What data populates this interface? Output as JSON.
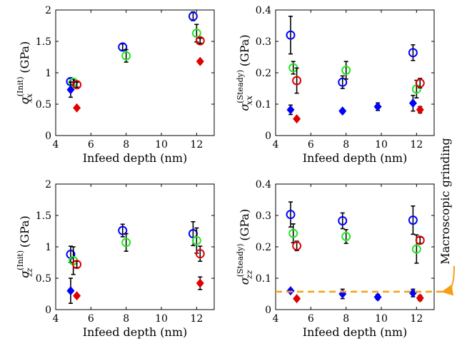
{
  "colors": {
    "blue": "#0000ff",
    "green": "#22e622",
    "red": "#e00000",
    "orange": "#f5a014",
    "errorbar": "#000000"
  },
  "annotation": {
    "text": "Macroscopic grinding",
    "reference_value": 0.057,
    "panel": 3
  },
  "chart_data": [
    {
      "type": "scatter",
      "xlabel": "Infeed depth (nm)",
      "ylabel_main": "σ",
      "ylabel_sub": "xx",
      "ylabel_sup": "(Init)",
      "ylabel_unit": " (GPa)",
      "xlim": [
        4,
        13
      ],
      "ylim": [
        0,
        2
      ],
      "xticks": [
        4,
        6,
        8,
        10,
        12
      ],
      "yticks": [
        0,
        0.5,
        1,
        1.5,
        2
      ],
      "ytick_labels": [
        "0",
        "0.5",
        "1",
        "1.5",
        "2"
      ],
      "series": [
        {
          "color": "blue",
          "marker": "circle",
          "points": [
            {
              "x": 4.85,
              "y": 0.86,
              "err": 0.05
            },
            {
              "x": 7.8,
              "y": 1.41,
              "err": 0.05
            },
            {
              "x": 11.8,
              "y": 1.9,
              "err": 0.07
            }
          ]
        },
        {
          "color": "green",
          "marker": "circle",
          "points": [
            {
              "x": 5.0,
              "y": 0.85,
              "err": 0.05
            },
            {
              "x": 8.0,
              "y": 1.27,
              "err": 0.1
            },
            {
              "x": 12.0,
              "y": 1.63,
              "err": 0.14
            }
          ]
        },
        {
          "color": "red",
          "marker": "circle",
          "points": [
            {
              "x": 5.2,
              "y": 0.81,
              "err": 0.04
            },
            {
              "x": 12.2,
              "y": 1.51,
              "err": 0.04
            }
          ]
        },
        {
          "color": "blue",
          "marker": "diamond",
          "points": [
            {
              "x": 4.85,
              "y": 0.73,
              "err": 0.12
            }
          ]
        },
        {
          "color": "red",
          "marker": "diamond",
          "points": [
            {
              "x": 5.2,
              "y": 0.44,
              "err": 0.02
            },
            {
              "x": 12.2,
              "y": 1.18,
              "err": 0.03
            }
          ]
        }
      ]
    },
    {
      "type": "scatter",
      "xlabel": "Infeed depth (nm)",
      "ylabel_main": "σ",
      "ylabel_sub": "xx",
      "ylabel_sup": "(Steady)",
      "ylabel_unit": " (GPa)",
      "xlim": [
        4,
        13
      ],
      "ylim": [
        0,
        0.4
      ],
      "xticks": [
        4,
        6,
        8,
        10,
        12
      ],
      "yticks": [
        0,
        0.1,
        0.2,
        0.3,
        0.4
      ],
      "ytick_labels": [
        "0",
        "0.1",
        "0.2",
        "0.3",
        "0.4"
      ],
      "series": [
        {
          "color": "blue",
          "marker": "circle",
          "points": [
            {
              "x": 4.85,
              "y": 0.32,
              "err": 0.06
            },
            {
              "x": 7.8,
              "y": 0.17,
              "err": 0.02
            },
            {
              "x": 11.8,
              "y": 0.264,
              "err": 0.025
            }
          ]
        },
        {
          "color": "green",
          "marker": "circle",
          "points": [
            {
              "x": 5.0,
              "y": 0.216,
              "err": 0.02
            },
            {
              "x": 8.0,
              "y": 0.208,
              "err": 0.028
            },
            {
              "x": 12.0,
              "y": 0.148,
              "err": 0.028
            }
          ]
        },
        {
          "color": "red",
          "marker": "circle",
          "points": [
            {
              "x": 5.2,
              "y": 0.175,
              "err": 0.04
            },
            {
              "x": 12.2,
              "y": 0.167,
              "err": 0.015
            }
          ]
        },
        {
          "color": "blue",
          "marker": "diamond",
          "points": [
            {
              "x": 4.85,
              "y": 0.082,
              "err": 0.015
            },
            {
              "x": 7.8,
              "y": 0.078,
              "err": 0.006
            },
            {
              "x": 9.8,
              "y": 0.092,
              "err": 0.012
            },
            {
              "x": 11.8,
              "y": 0.103,
              "err": 0.025
            }
          ]
        },
        {
          "color": "red",
          "marker": "diamond",
          "points": [
            {
              "x": 5.2,
              "y": 0.053,
              "err": 0.005
            },
            {
              "x": 12.2,
              "y": 0.082,
              "err": 0.01
            }
          ]
        }
      ]
    },
    {
      "type": "scatter",
      "xlabel": "Infeed depth (nm)",
      "ylabel_main": "σ",
      "ylabel_sub": "zz",
      "ylabel_sup": "(Init)",
      "ylabel_unit": " (GPa)",
      "xlim": [
        4,
        13
      ],
      "ylim": [
        0,
        2
      ],
      "xticks": [
        4,
        6,
        8,
        10,
        12
      ],
      "yticks": [
        0,
        0.5,
        1,
        1.5,
        2
      ],
      "ytick_labels": [
        "0",
        "0.5",
        "1",
        "1.5",
        "2"
      ],
      "series": [
        {
          "color": "blue",
          "marker": "circle",
          "points": [
            {
              "x": 4.85,
              "y": 0.88,
              "err": 0.13
            },
            {
              "x": 7.8,
              "y": 1.26,
              "err": 0.1
            },
            {
              "x": 11.8,
              "y": 1.21,
              "err": 0.19
            }
          ]
        },
        {
          "color": "green",
          "marker": "circle",
          "points": [
            {
              "x": 5.0,
              "y": 0.78,
              "err": 0.22
            },
            {
              "x": 8.0,
              "y": 1.07,
              "err": 0.14
            },
            {
              "x": 12.0,
              "y": 1.1,
              "err": 0.2
            }
          ]
        },
        {
          "color": "red",
          "marker": "circle",
          "points": [
            {
              "x": 5.2,
              "y": 0.72,
              "err": 0.05
            },
            {
              "x": 12.2,
              "y": 0.89,
              "err": 0.12
            }
          ]
        },
        {
          "color": "blue",
          "marker": "diamond",
          "points": [
            {
              "x": 4.85,
              "y": 0.3,
              "err": 0.2
            }
          ]
        },
        {
          "color": "red",
          "marker": "diamond",
          "points": [
            {
              "x": 5.2,
              "y": 0.22,
              "err": 0.02
            },
            {
              "x": 12.2,
              "y": 0.42,
              "err": 0.1
            }
          ]
        }
      ]
    },
    {
      "type": "scatter",
      "xlabel": "Infeed depth (nm)",
      "ylabel_main": "σ",
      "ylabel_sub": "zz",
      "ylabel_sup": "(Steady)",
      "ylabel_unit": " (GPa)",
      "xlim": [
        4,
        13
      ],
      "ylim": [
        0,
        0.4
      ],
      "xticks": [
        4,
        6,
        8,
        10,
        12
      ],
      "yticks": [
        0,
        0.1,
        0.2,
        0.3,
        0.4
      ],
      "ytick_labels": [
        "0",
        "0.1",
        "0.2",
        "0.3",
        "0.4"
      ],
      "series": [
        {
          "color": "blue",
          "marker": "circle",
          "points": [
            {
              "x": 4.85,
              "y": 0.303,
              "err": 0.04
            },
            {
              "x": 7.8,
              "y": 0.283,
              "err": 0.025
            },
            {
              "x": 11.8,
              "y": 0.285,
              "err": 0.045
            }
          ]
        },
        {
          "color": "green",
          "marker": "circle",
          "points": [
            {
              "x": 5.0,
              "y": 0.243,
              "err": 0.03
            },
            {
              "x": 8.0,
              "y": 0.233,
              "err": 0.022
            },
            {
              "x": 12.0,
              "y": 0.193,
              "err": 0.045
            }
          ]
        },
        {
          "color": "red",
          "marker": "circle",
          "points": [
            {
              "x": 5.2,
              "y": 0.203,
              "err": 0.015
            },
            {
              "x": 12.2,
              "y": 0.221,
              "err": 0.01
            }
          ]
        },
        {
          "color": "blue",
          "marker": "diamond",
          "points": [
            {
              "x": 4.85,
              "y": 0.06,
              "err": 0.006
            },
            {
              "x": 7.8,
              "y": 0.05,
              "err": 0.015
            },
            {
              "x": 9.8,
              "y": 0.04,
              "err": 0.008
            },
            {
              "x": 11.8,
              "y": 0.053,
              "err": 0.012
            }
          ]
        },
        {
          "color": "red",
          "marker": "diamond",
          "points": [
            {
              "x": 5.2,
              "y": 0.035,
              "err": 0.005
            },
            {
              "x": 12.2,
              "y": 0.037,
              "err": 0.008
            }
          ]
        }
      ]
    }
  ]
}
